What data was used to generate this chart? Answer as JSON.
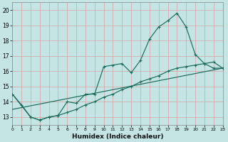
{
  "xlabel": "Humidex (Indice chaleur)",
  "xlim": [
    0,
    23
  ],
  "ylim": [
    12.5,
    20.5
  ],
  "ytick_vals": [
    13,
    14,
    15,
    16,
    17,
    18,
    19,
    20
  ],
  "xtick_vals": [
    0,
    1,
    2,
    3,
    4,
    5,
    6,
    7,
    8,
    9,
    10,
    11,
    12,
    13,
    14,
    15,
    16,
    17,
    18,
    19,
    20,
    21,
    22,
    23
  ],
  "bg_color": "#c5e5e5",
  "grid_color": "#b0d0d0",
  "line_color": "#1a6b5a",
  "line1_x": [
    0,
    1,
    2,
    3,
    4,
    5,
    6,
    7,
    8,
    9,
    10,
    11,
    12,
    13,
    14,
    15,
    16,
    17,
    18,
    19,
    20,
    21,
    22,
    23
  ],
  "line1_y": [
    14.5,
    13.8,
    13.0,
    12.8,
    13.0,
    13.1,
    14.0,
    13.9,
    14.5,
    14.5,
    16.3,
    16.4,
    16.5,
    15.9,
    16.7,
    18.1,
    18.9,
    19.3,
    19.8,
    18.9,
    17.1,
    16.5,
    16.2,
    16.2
  ],
  "line2_x": [
    0,
    2,
    3,
    4,
    5,
    6,
    7,
    8,
    9,
    10,
    11,
    12,
    13,
    14,
    15,
    16,
    17,
    18,
    19,
    20,
    21,
    22,
    23
  ],
  "line2_y": [
    14.5,
    13.0,
    12.8,
    13.0,
    13.1,
    13.3,
    13.5,
    13.8,
    14.0,
    14.3,
    14.5,
    14.8,
    15.0,
    15.3,
    15.5,
    15.7,
    16.0,
    16.2,
    16.3,
    16.4,
    16.5,
    16.6,
    16.2
  ],
  "line3_x": [
    0,
    23
  ],
  "line3_y": [
    13.5,
    16.2
  ]
}
